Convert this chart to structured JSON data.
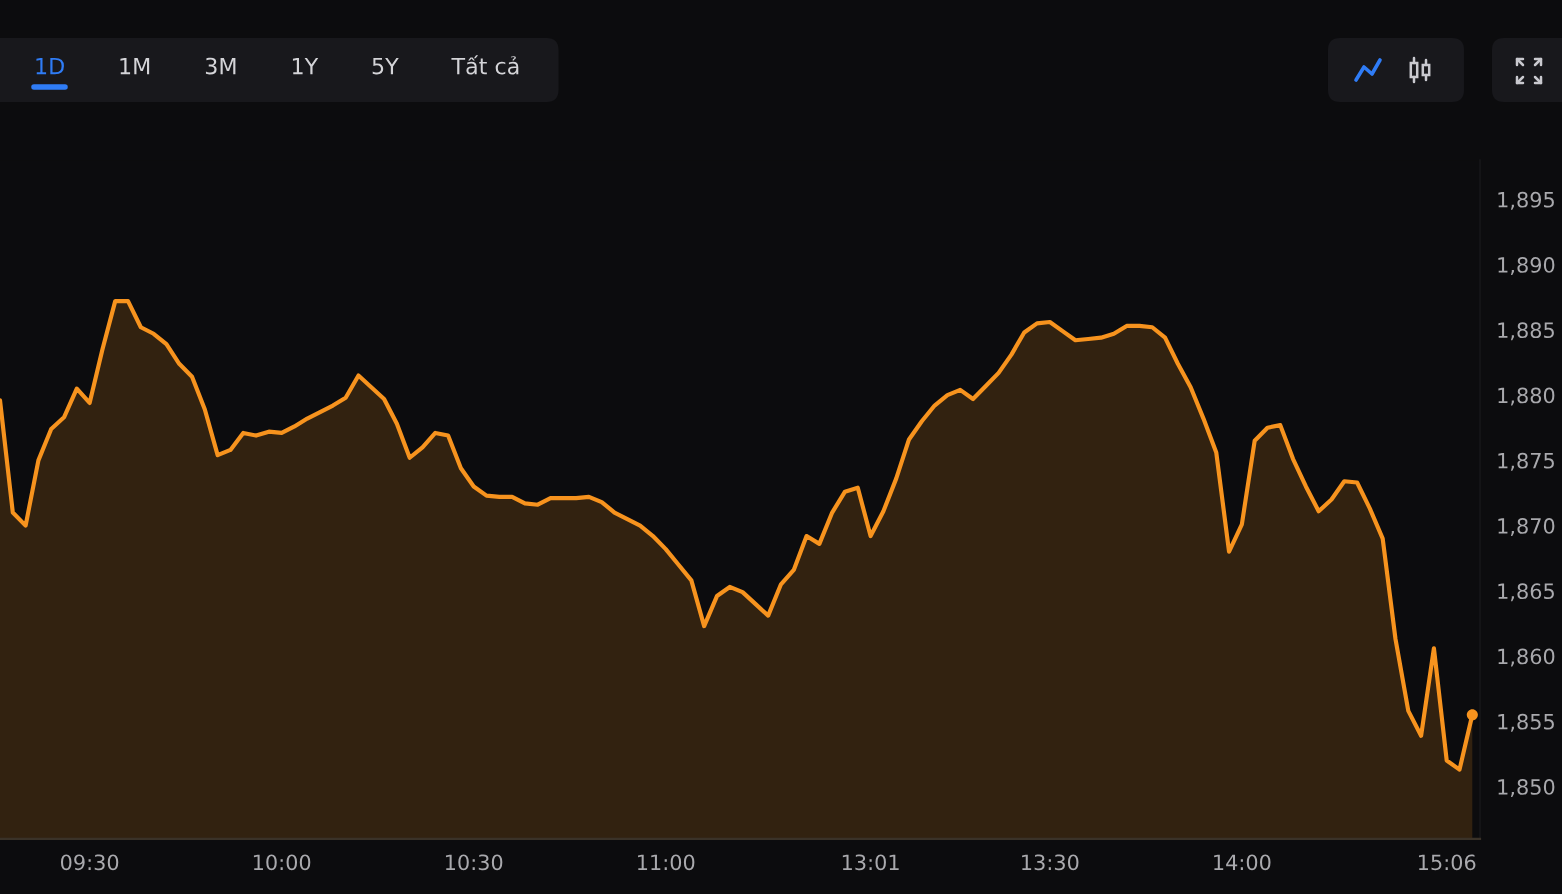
{
  "chart_data": {
    "type": "area",
    "annotations": [
      "1D",
      "1M",
      "3M",
      "1Y",
      "5Y",
      "Tất cả"
    ],
    "categories": [
      null,
      null,
      null,
      null,
      null,
      null,
      null,
      "09:30",
      null,
      null,
      null,
      null,
      null,
      null,
      null,
      null,
      null,
      null,
      null,
      null,
      null,
      null,
      "10:00",
      null,
      null,
      null,
      null,
      null,
      null,
      null,
      null,
      null,
      null,
      null,
      null,
      null,
      null,
      "10:30",
      null,
      null,
      null,
      null,
      null,
      null,
      null,
      null,
      null,
      null,
      null,
      null,
      null,
      null,
      "11:00",
      null,
      null,
      null,
      null,
      null,
      null,
      null,
      null,
      null,
      null,
      null,
      null,
      null,
      null,
      null,
      "13:01",
      null,
      null,
      null,
      null,
      null,
      null,
      null,
      null,
      null,
      null,
      null,
      null,
      null,
      "13:30",
      null,
      null,
      null,
      null,
      null,
      null,
      null,
      null,
      null,
      null,
      null,
      null,
      null,
      null,
      "14:00",
      null,
      null,
      null,
      null,
      null,
      null,
      null,
      null,
      null,
      null,
      null,
      null,
      null,
      null,
      null,
      "15:06",
      null,
      null
    ],
    "series": [
      {
        "color": "#f7931e",
        "values": [
          1879.6,
          1871.0,
          1870.0,
          1875.0,
          1877.4,
          1878.3,
          1880.5,
          1879.4,
          1883.5,
          1887.2,
          1887.2,
          1885.2,
          1884.7,
          1883.9,
          1882.4,
          1881.4,
          1878.9,
          1875.4,
          1875.8,
          1877.1,
          1876.9,
          1877.2,
          1877.1,
          1877.6,
          1878.2,
          1878.7,
          1879.2,
          1879.8,
          1881.5,
          1880.6,
          1879.7,
          1877.8,
          1875.2,
          1876.0,
          1877.1,
          1876.9,
          1874.4,
          1873.0,
          1872.3,
          1872.2,
          1872.2,
          1871.7,
          1871.6,
          1872.1,
          1872.1,
          1872.1,
          1872.2,
          1871.8,
          1871.0,
          1870.5,
          1870.0,
          1869.2,
          1868.2,
          1867.0,
          1865.8,
          1862.3,
          1864.6,
          1865.3,
          1864.9,
          1864.0,
          1863.1,
          1865.5,
          1866.6,
          1869.2,
          1868.6,
          1871.0,
          1872.6,
          1872.9,
          1869.2,
          1871.1,
          1873.6,
          1876.6,
          1878.0,
          1879.2,
          1880.0,
          1880.4,
          1879.7,
          1880.7,
          1881.7,
          1883.1,
          1884.8,
          1885.5,
          1885.6,
          1884.9,
          1884.2,
          1884.3,
          1884.4,
          1884.7,
          1885.3,
          1885.3,
          1885.2,
          1884.4,
          1882.4,
          1880.6,
          1878.2,
          1875.6,
          1868.0,
          1870.1,
          1876.5,
          1877.5,
          1877.7,
          1875.1,
          1873.0,
          1871.1,
          1872.0,
          1873.4,
          1873.3,
          1871.3,
          1869.0,
          1861.3,
          1855.8,
          1853.9,
          1860.6,
          1852.0,
          1851.3,
          1855.5
        ]
      },
      {
        "type": "scatter",
        "marker": "circle",
        "color": "#f7931e",
        "values": [
          null,
          null,
          null,
          null,
          null,
          null,
          null,
          null,
          null,
          null,
          null,
          null,
          null,
          null,
          null,
          null,
          null,
          null,
          null,
          null,
          null,
          null,
          null,
          null,
          null,
          null,
          null,
          null,
          null,
          null,
          null,
          null,
          null,
          null,
          null,
          null,
          null,
          null,
          null,
          null,
          null,
          null,
          null,
          null,
          null,
          null,
          null,
          null,
          null,
          null,
          null,
          null,
          null,
          null,
          null,
          null,
          null,
          null,
          null,
          null,
          null,
          null,
          null,
          null,
          null,
          null,
          null,
          null,
          null,
          null,
          null,
          null,
          null,
          null,
          null,
          null,
          null,
          null,
          null,
          null,
          null,
          null,
          null,
          null,
          null,
          null,
          null,
          null,
          null,
          null,
          null,
          null,
          null,
          null,
          null,
          null,
          null,
          null,
          null,
          null,
          null,
          null,
          null,
          null,
          null,
          null,
          null,
          null,
          null,
          null,
          null,
          null,
          null,
          null,
          null,
          1855.5
        ]
      }
    ],
    "ylim": [
      1846,
      1898
    ],
    "yticks": [
      {
        "value": 1850,
        "label": "1,850"
      },
      {
        "value": 1855,
        "label": "1,855"
      },
      {
        "value": 1860,
        "label": "1,860"
      },
      {
        "value": 1865,
        "label": "1,865"
      },
      {
        "value": 1870,
        "label": "1,870"
      },
      {
        "value": 1875,
        "label": "1,875"
      },
      {
        "value": 1880,
        "label": "1,880"
      },
      {
        "value": 1885,
        "label": "1,885"
      },
      {
        "value": 1890,
        "label": "1,890"
      },
      {
        "value": 1895,
        "label": "1,895"
      }
    ]
  }
}
